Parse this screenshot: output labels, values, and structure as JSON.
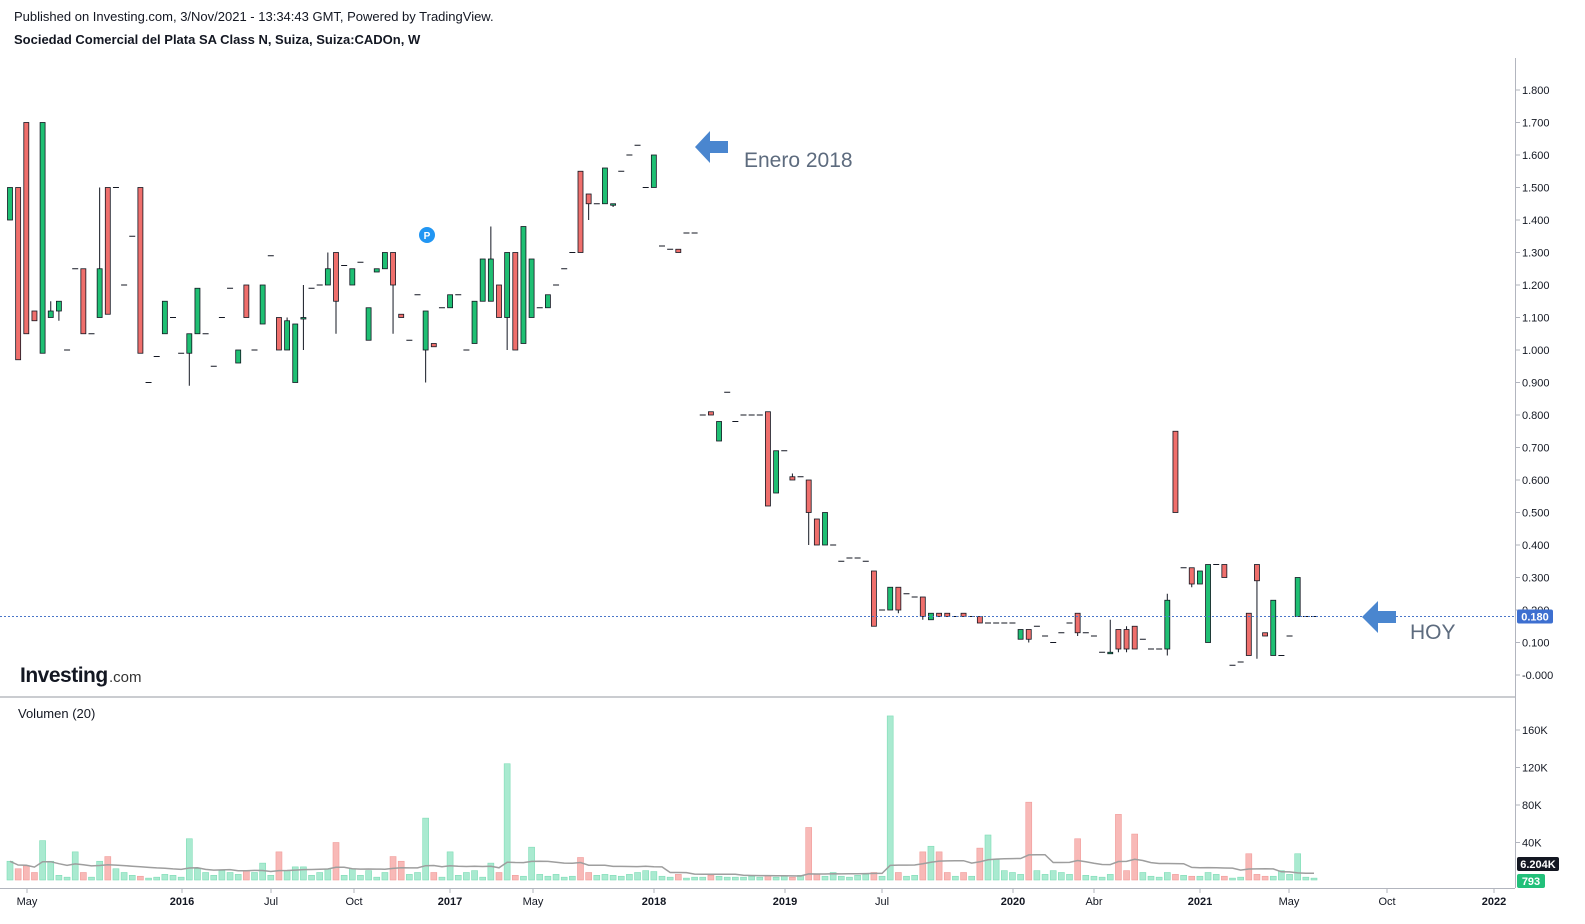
{
  "header": {
    "published": "Published on Investing.com, 3/Nov/2021 - 13:34:43 GMT, Powered by TradingView.",
    "title": "Sociedad Comercial del Plata SA Class N, Suiza, Suiza:CADOn, W"
  },
  "logo": {
    "brand": "Investing",
    "suffix": ".com"
  },
  "volume_label": "Volumen (20)",
  "colors": {
    "up": "#26a69a",
    "up_fill": "#1fbf73",
    "down": "#ef5350",
    "down_fill": "#ef6f6c",
    "vol_up": "#a9ead0",
    "vol_down": "#f8b9b7",
    "ma": "#9e9e9e",
    "last": "#4a76c9",
    "arrow": "#4a86cf"
  },
  "chart_data": {
    "type": "candlestick",
    "title": "Sociedad Comercial del Plata SA Class N, Suiza, Suiza:CADOn, W",
    "price_axis": {
      "min": 0,
      "max": 1.8,
      "ticks": [
        "1.800",
        "1.700",
        "1.600",
        "1.500",
        "1.400",
        "1.300",
        "1.200",
        "1.100",
        "1.000",
        "0.900",
        "0.800",
        "0.700",
        "0.600",
        "0.500",
        "0.400",
        "0.300",
        "0.200",
        "0.100",
        "-0.000"
      ]
    },
    "volume_axis": {
      "min": 0,
      "max": 160000,
      "ticks": [
        "160K",
        "120K",
        "80K",
        "40K"
      ]
    },
    "x_labels": [
      {
        "label": "May",
        "bold": false
      },
      {
        "label": "2016",
        "bold": true
      },
      {
        "label": "Jul",
        "bold": false
      },
      {
        "label": "Oct",
        "bold": false
      },
      {
        "label": "2017",
        "bold": true
      },
      {
        "label": "May",
        "bold": false
      },
      {
        "label": "2018",
        "bold": true
      },
      {
        "label": "2019",
        "bold": true
      },
      {
        "label": "Jul",
        "bold": false
      },
      {
        "label": "2020",
        "bold": true
      },
      {
        "label": "Abr",
        "bold": false
      },
      {
        "label": "2021",
        "bold": true
      },
      {
        "label": "May",
        "bold": false
      },
      {
        "label": "Oct",
        "bold": false
      },
      {
        "label": "2022",
        "bold": true
      }
    ],
    "last_price": "0.180",
    "last_volume_ma": "6.204K",
    "last_volume": "793",
    "annotations": [
      {
        "text": "Enero 2018",
        "price": 1.6
      },
      {
        "text": "HOY",
        "price": 0.18
      }
    ],
    "candles": [
      [
        1.4,
        1.5,
        1.4,
        1.5,
        20000
      ],
      [
        1.5,
        1.5,
        0.97,
        0.97,
        12000
      ],
      [
        1.7,
        1.7,
        1.05,
        1.05,
        15000
      ],
      [
        1.12,
        1.12,
        1.09,
        1.09,
        8000
      ],
      [
        0.99,
        1.7,
        0.99,
        1.7,
        42000
      ],
      [
        1.1,
        1.15,
        1.1,
        1.12,
        20000
      ],
      [
        1.12,
        1.15,
        1.09,
        1.15,
        5000
      ],
      [
        1.0,
        1.0,
        1.0,
        1.0,
        3000
      ],
      [
        1.25,
        1.25,
        1.25,
        1.25,
        30000
      ],
      [
        1.25,
        1.25,
        1.05,
        1.05,
        8000
      ],
      [
        1.05,
        1.05,
        1.05,
        1.05,
        3000
      ],
      [
        1.1,
        1.5,
        1.1,
        1.25,
        20000
      ],
      [
        1.5,
        1.5,
        1.11,
        1.11,
        25000
      ],
      [
        1.5,
        1.5,
        1.5,
        1.5,
        12000
      ],
      [
        1.2,
        1.2,
        1.2,
        1.2,
        8000
      ],
      [
        1.35,
        1.35,
        1.35,
        1.35,
        5000
      ],
      [
        1.5,
        1.5,
        0.99,
        0.99,
        4000
      ],
      [
        0.9,
        0.9,
        0.9,
        0.9,
        2000
      ],
      [
        0.98,
        0.98,
        0.98,
        0.98,
        3000
      ],
      [
        1.05,
        1.15,
        1.05,
        1.15,
        6000
      ],
      [
        1.1,
        1.1,
        1.1,
        1.1,
        5000
      ],
      [
        0.99,
        0.99,
        0.99,
        0.99,
        3000
      ],
      [
        0.99,
        1.05,
        0.89,
        1.05,
        44000
      ],
      [
        1.05,
        1.19,
        1.05,
        1.19,
        12000
      ],
      [
        1.05,
        1.05,
        1.05,
        1.05,
        8000
      ],
      [
        0.95,
        0.95,
        0.95,
        0.95,
        5000
      ],
      [
        1.1,
        1.1,
        1.1,
        1.1,
        10000
      ],
      [
        1.19,
        1.19,
        1.19,
        1.19,
        8000
      ],
      [
        0.96,
        1.0,
        0.96,
        1.0,
        6000
      ],
      [
        1.2,
        1.2,
        1.1,
        1.1,
        10000
      ],
      [
        1.0,
        1.0,
        1.0,
        1.0,
        8000
      ],
      [
        1.08,
        1.2,
        1.08,
        1.2,
        18000
      ],
      [
        1.29,
        1.29,
        1.29,
        1.29,
        5000
      ],
      [
        1.1,
        1.1,
        1.0,
        1.0,
        30000
      ],
      [
        1.0,
        1.1,
        1.0,
        1.09,
        10000
      ],
      [
        0.9,
        1.08,
        0.9,
        1.08,
        14000
      ],
      [
        1.1,
        1.2,
        1.0,
        1.1,
        14000
      ],
      [
        1.19,
        1.19,
        1.19,
        1.19,
        5000
      ],
      [
        1.2,
        1.2,
        1.2,
        1.2,
        8000
      ],
      [
        1.2,
        1.3,
        1.2,
        1.25,
        12000
      ],
      [
        1.3,
        1.3,
        1.05,
        1.15,
        40000
      ],
      [
        1.26,
        1.26,
        1.26,
        1.26,
        5000
      ],
      [
        1.2,
        1.25,
        1.2,
        1.25,
        12000
      ],
      [
        1.27,
        1.27,
        1.27,
        1.27,
        5000
      ],
      [
        1.03,
        1.13,
        1.03,
        1.13,
        10000
      ],
      [
        1.24,
        1.25,
        1.24,
        1.25,
        3000
      ],
      [
        1.25,
        1.3,
        1.25,
        1.3,
        8000
      ],
      [
        1.3,
        1.3,
        1.05,
        1.2,
        25000
      ],
      [
        1.11,
        1.11,
        1.1,
        1.1,
        20000
      ],
      [
        1.03,
        1.03,
        1.03,
        1.03,
        6000
      ],
      [
        1.17,
        1.17,
        1.17,
        1.17,
        8000
      ],
      [
        1.0,
        1.12,
        0.9,
        1.12,
        66000
      ],
      [
        1.02,
        1.02,
        1.01,
        1.01,
        8000
      ],
      [
        1.13,
        1.13,
        1.13,
        1.13,
        3000
      ],
      [
        1.13,
        1.17,
        1.13,
        1.17,
        30000
      ],
      [
        1.17,
        1.17,
        1.17,
        1.17,
        5000
      ],
      [
        1.0,
        1.0,
        1.0,
        1.0,
        8000
      ],
      [
        1.02,
        1.15,
        1.02,
        1.15,
        10000
      ],
      [
        1.15,
        1.28,
        1.15,
        1.28,
        3000
      ],
      [
        1.15,
        1.38,
        1.15,
        1.28,
        18000
      ],
      [
        1.2,
        1.2,
        1.1,
        1.1,
        8000
      ],
      [
        1.1,
        1.3,
        1.0,
        1.3,
        124000
      ],
      [
        1.3,
        1.3,
        1.0,
        1.0,
        5000
      ],
      [
        1.02,
        1.38,
        1.02,
        1.38,
        4000
      ],
      [
        1.1,
        1.28,
        1.1,
        1.28,
        35000
      ],
      [
        1.13,
        1.13,
        1.13,
        1.13,
        6000
      ],
      [
        1.13,
        1.17,
        1.13,
        1.17,
        4000
      ],
      [
        1.2,
        1.2,
        1.2,
        1.2,
        6000
      ],
      [
        1.25,
        1.25,
        1.25,
        1.25,
        3000
      ],
      [
        1.3,
        1.3,
        1.3,
        1.3,
        4000
      ],
      [
        1.55,
        1.55,
        1.3,
        1.3,
        24000
      ],
      [
        1.48,
        1.48,
        1.4,
        1.45,
        8000
      ],
      [
        1.45,
        1.45,
        1.45,
        1.45,
        5000
      ],
      [
        1.45,
        1.56,
        1.45,
        1.56,
        6000
      ],
      [
        1.45,
        1.45,
        1.44,
        1.45,
        5000
      ],
      [
        1.55,
        1.55,
        1.55,
        1.55,
        4000
      ],
      [
        1.6,
        1.6,
        1.6,
        1.6,
        6000
      ],
      [
        1.63,
        1.63,
        1.63,
        1.63,
        8000
      ],
      [
        1.5,
        1.5,
        1.5,
        1.5,
        10000
      ],
      [
        1.5,
        1.6,
        1.5,
        1.6,
        9000
      ],
      [
        1.32,
        1.32,
        1.32,
        1.32,
        4000
      ],
      [
        1.31,
        1.31,
        1.31,
        1.31,
        3000
      ],
      [
        1.31,
        1.31,
        1.3,
        1.3,
        6000
      ],
      [
        1.36,
        1.36,
        1.36,
        1.36,
        2000
      ],
      [
        1.36,
        1.36,
        1.36,
        1.36,
        3000
      ],
      [
        0.8,
        0.8,
        0.8,
        0.8,
        3000
      ],
      [
        0.81,
        0.81,
        0.8,
        0.8,
        5000
      ],
      [
        0.72,
        0.78,
        0.72,
        0.78,
        4000
      ],
      [
        0.87,
        0.87,
        0.87,
        0.87,
        3000
      ],
      [
        0.78,
        0.78,
        0.78,
        0.78,
        3000
      ],
      [
        0.8,
        0.8,
        0.8,
        0.8,
        3000
      ],
      [
        0.8,
        0.8,
        0.8,
        0.8,
        4000
      ],
      [
        0.8,
        0.8,
        0.8,
        0.8,
        3000
      ],
      [
        0.81,
        0.81,
        0.52,
        0.52,
        5000
      ],
      [
        0.56,
        0.69,
        0.56,
        0.69,
        3000
      ],
      [
        0.69,
        0.69,
        0.69,
        0.69,
        4000
      ],
      [
        0.61,
        0.62,
        0.6,
        0.6,
        3000
      ],
      [
        0.61,
        0.61,
        0.61,
        0.61,
        5000
      ],
      [
        0.6,
        0.6,
        0.4,
        0.5,
        56000
      ],
      [
        0.48,
        0.48,
        0.4,
        0.4,
        6000
      ],
      [
        0.4,
        0.5,
        0.4,
        0.5,
        4000
      ],
      [
        0.4,
        0.4,
        0.4,
        0.4,
        8000
      ],
      [
        0.35,
        0.35,
        0.35,
        0.35,
        4000
      ],
      [
        0.36,
        0.36,
        0.36,
        0.36,
        3000
      ],
      [
        0.36,
        0.36,
        0.36,
        0.36,
        5000
      ],
      [
        0.35,
        0.35,
        0.35,
        0.35,
        6000
      ],
      [
        0.32,
        0.32,
        0.15,
        0.15,
        8000
      ],
      [
        0.2,
        0.2,
        0.2,
        0.2,
        4000
      ],
      [
        0.2,
        0.27,
        0.2,
        0.27,
        175000
      ],
      [
        0.27,
        0.27,
        0.19,
        0.2,
        8000
      ],
      [
        0.25,
        0.25,
        0.25,
        0.25,
        4000
      ],
      [
        0.24,
        0.24,
        0.24,
        0.24,
        5000
      ],
      [
        0.24,
        0.24,
        0.17,
        0.18,
        30000
      ],
      [
        0.17,
        0.19,
        0.17,
        0.19,
        36000
      ],
      [
        0.19,
        0.19,
        0.18,
        0.18,
        30000
      ],
      [
        0.19,
        0.19,
        0.18,
        0.18,
        8000
      ],
      [
        0.18,
        0.18,
        0.18,
        0.18,
        4000
      ],
      [
        0.19,
        0.19,
        0.18,
        0.18,
        8000
      ],
      [
        0.18,
        0.18,
        0.18,
        0.18,
        4000
      ],
      [
        0.18,
        0.18,
        0.16,
        0.16,
        34000
      ],
      [
        0.16,
        0.16,
        0.16,
        0.16,
        48000
      ],
      [
        0.16,
        0.16,
        0.16,
        0.16,
        22000
      ],
      [
        0.16,
        0.16,
        0.16,
        0.16,
        10000
      ],
      [
        0.16,
        0.16,
        0.16,
        0.16,
        8000
      ],
      [
        0.11,
        0.14,
        0.11,
        0.14,
        6000
      ],
      [
        0.14,
        0.14,
        0.1,
        0.11,
        83000
      ],
      [
        0.15,
        0.15,
        0.15,
        0.15,
        10000
      ],
      [
        0.12,
        0.12,
        0.12,
        0.12,
        6000
      ],
      [
        0.1,
        0.1,
        0.1,
        0.1,
        10000
      ],
      [
        0.13,
        0.13,
        0.13,
        0.13,
        8000
      ],
      [
        0.16,
        0.16,
        0.16,
        0.16,
        6000
      ],
      [
        0.19,
        0.19,
        0.12,
        0.13,
        44000
      ],
      [
        0.13,
        0.13,
        0.13,
        0.13,
        5000
      ],
      [
        0.12,
        0.12,
        0.12,
        0.12,
        4000
      ],
      [
        0.07,
        0.07,
        0.07,
        0.07,
        3000
      ],
      [
        0.07,
        0.17,
        0.07,
        0.07,
        6000
      ],
      [
        0.14,
        0.14,
        0.07,
        0.08,
        70000
      ],
      [
        0.14,
        0.15,
        0.07,
        0.08,
        10000
      ],
      [
        0.15,
        0.15,
        0.08,
        0.08,
        49000
      ],
      [
        0.11,
        0.11,
        0.11,
        0.11,
        8000
      ],
      [
        0.08,
        0.08,
        0.08,
        0.08,
        4000
      ],
      [
        0.08,
        0.08,
        0.08,
        0.08,
        3000
      ],
      [
        0.08,
        0.25,
        0.06,
        0.23,
        8000
      ],
      [
        0.75,
        0.75,
        0.5,
        0.5,
        6000
      ],
      [
        0.33,
        0.33,
        0.33,
        0.33,
        5000
      ],
      [
        0.33,
        0.33,
        0.27,
        0.28,
        4000
      ],
      [
        0.28,
        0.32,
        0.28,
        0.32,
        4000
      ],
      [
        0.1,
        0.34,
        0.1,
        0.34,
        8000
      ],
      [
        0.34,
        0.34,
        0.34,
        0.34,
        6000
      ],
      [
        0.34,
        0.34,
        0.3,
        0.3,
        4000
      ],
      [
        0.03,
        0.03,
        0.03,
        0.03,
        2000
      ],
      [
        0.04,
        0.04,
        0.04,
        0.04,
        3000
      ],
      [
        0.19,
        0.19,
        0.06,
        0.06,
        28000
      ],
      [
        0.34,
        0.34,
        0.05,
        0.29,
        6000
      ],
      [
        0.13,
        0.13,
        0.12,
        0.12,
        4000
      ],
      [
        0.06,
        0.23,
        0.06,
        0.23,
        4000
      ],
      [
        0.06,
        0.06,
        0.06,
        0.06,
        10000
      ],
      [
        0.12,
        0.12,
        0.12,
        0.12,
        6000
      ],
      [
        0.18,
        0.3,
        0.18,
        0.3,
        28000
      ],
      [
        0.18,
        0.18,
        0.18,
        0.18,
        3000
      ],
      [
        0.18,
        0.18,
        0.18,
        0.18,
        2000
      ]
    ]
  }
}
